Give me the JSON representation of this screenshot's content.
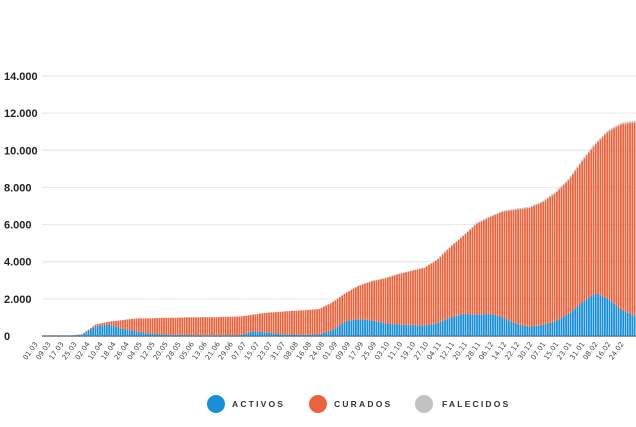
{
  "chart_data": {
    "type": "area",
    "stacked": true,
    "ylim": [
      0,
      14000
    ],
    "yticks": [
      "14.000",
      "12.000",
      "10.000",
      "8.000",
      "6.000",
      "4.000",
      "2.000",
      "0"
    ],
    "grid": true,
    "legend_position": "bottom",
    "x": [
      "01.03",
      "09.03",
      "17.03",
      "25.03",
      "02.04",
      "10.04",
      "18.04",
      "26.04",
      "04.05",
      "12.05",
      "20.05",
      "28.05",
      "05.06",
      "13.06",
      "21.06",
      "29.06",
      "07.07",
      "15.07",
      "23.07",
      "31.07",
      "08.08",
      "16.08",
      "24.08",
      "01.09",
      "09.09",
      "17.09",
      "25.09",
      "03.10",
      "11.10",
      "19.10",
      "27.10",
      "04.11",
      "12.11",
      "20.11",
      "28.11",
      "06.12",
      "14.12",
      "22.12",
      "30.12",
      "07.01",
      "15.01",
      "23.01",
      "31.01",
      "08.02",
      "16.02",
      "24.02"
    ],
    "series": [
      {
        "name": "ACTIVOS",
        "color": "#1a8fd6",
        "values": [
          0,
          5,
          20,
          80,
          520,
          620,
          400,
          260,
          150,
          90,
          60,
          50,
          40,
          40,
          40,
          50,
          250,
          200,
          100,
          80,
          60,
          100,
          300,
          800,
          900,
          850,
          700,
          620,
          600,
          560,
          700,
          1000,
          1200,
          1150,
          1200,
          1000,
          650,
          500,
          600,
          800,
          1200,
          1800,
          2300,
          2000,
          1400,
          1100
        ]
      },
      {
        "name": "CURADOS",
        "color": "#e8643f",
        "values": [
          0,
          0,
          0,
          20,
          100,
          150,
          450,
          680,
          800,
          880,
          920,
          950,
          970,
          970,
          990,
          1000,
          900,
          1050,
          1200,
          1270,
          1330,
          1350,
          1500,
          1500,
          1800,
          2100,
          2400,
          2700,
          2900,
          3100,
          3400,
          3800,
          4200,
          4900,
          5200,
          5700,
          6150,
          6400,
          6600,
          6900,
          7200,
          7600,
          8000,
          9000,
          10000,
          10400
        ]
      },
      {
        "name": "FALECIDOS",
        "color": "#c2c2c2",
        "values": [
          0,
          0,
          1,
          2,
          5,
          8,
          10,
          11,
          12,
          12,
          12,
          12,
          12,
          12,
          12,
          12,
          13,
          13,
          14,
          14,
          15,
          16,
          17,
          18,
          20,
          22,
          24,
          26,
          28,
          30,
          32,
          35,
          40,
          45,
          50,
          55,
          60,
          63,
          66,
          70,
          75,
          80,
          85,
          88,
          90,
          92
        ]
      }
    ]
  }
}
